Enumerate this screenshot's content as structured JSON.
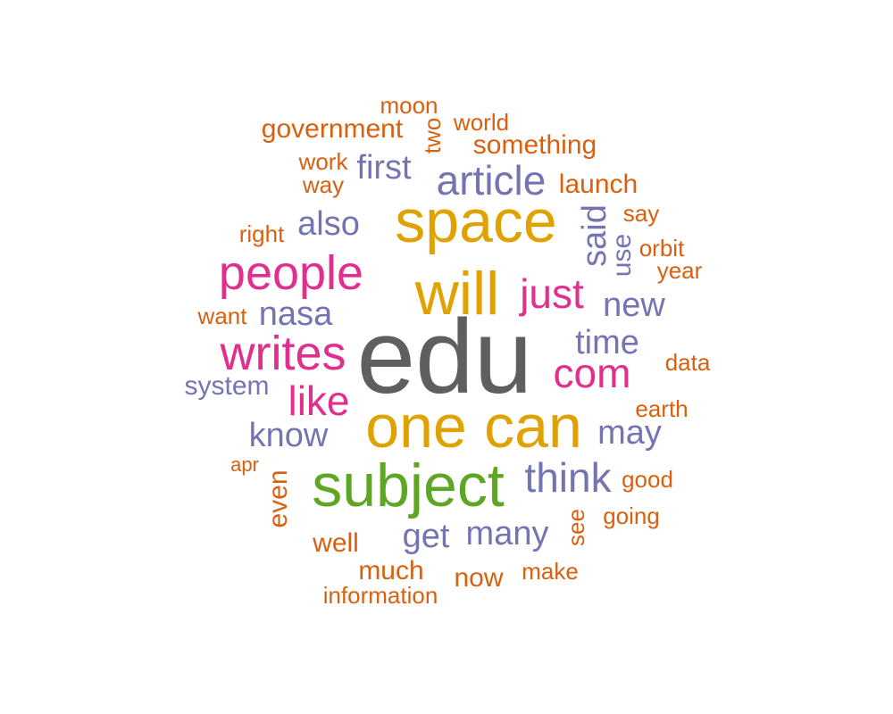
{
  "colors": {
    "background": "#ffffff",
    "gray": "#5f5f5f",
    "gold": "#e0a200",
    "green": "#5ea624",
    "magenta": "#e22e8c",
    "purple": "#7574b2",
    "orange": "#d8600f"
  },
  "words": [
    {
      "text": "edu",
      "tier": "xl",
      "color": "gray",
      "rotated": false
    },
    {
      "text": "space",
      "tier": "l",
      "color": "gold",
      "rotated": false
    },
    {
      "text": "will",
      "tier": "l",
      "color": "gold",
      "rotated": false
    },
    {
      "text": "one",
      "tier": "l",
      "color": "gold",
      "rotated": false
    },
    {
      "text": "can",
      "tier": "l",
      "color": "gold",
      "rotated": false
    },
    {
      "text": "subject",
      "tier": "l",
      "color": "green",
      "rotated": false
    },
    {
      "text": "people",
      "tier": "ml",
      "color": "magenta",
      "rotated": false
    },
    {
      "text": "writes",
      "tier": "ml",
      "color": "magenta",
      "rotated": false
    },
    {
      "text": "just",
      "tier": "m",
      "color": "magenta",
      "rotated": false
    },
    {
      "text": "com",
      "tier": "m",
      "color": "magenta",
      "rotated": false
    },
    {
      "text": "like",
      "tier": "m",
      "color": "magenta",
      "rotated": false
    },
    {
      "text": "article",
      "tier": "m",
      "color": "purple",
      "rotated": false
    },
    {
      "text": "think",
      "tier": "m",
      "color": "purple",
      "rotated": false
    },
    {
      "text": "also",
      "tier": "s",
      "color": "purple",
      "rotated": false
    },
    {
      "text": "nasa",
      "tier": "s",
      "color": "purple",
      "rotated": false
    },
    {
      "text": "time",
      "tier": "s",
      "color": "purple",
      "rotated": false
    },
    {
      "text": "know",
      "tier": "s",
      "color": "purple",
      "rotated": false
    },
    {
      "text": "may",
      "tier": "s",
      "color": "purple",
      "rotated": false
    },
    {
      "text": "new",
      "tier": "s",
      "color": "purple",
      "rotated": false
    },
    {
      "text": "get",
      "tier": "s",
      "color": "purple",
      "rotated": false
    },
    {
      "text": "many",
      "tier": "s",
      "color": "purple",
      "rotated": false
    },
    {
      "text": "first",
      "tier": "s",
      "color": "purple",
      "rotated": false
    },
    {
      "text": "system",
      "tier": "xs",
      "color": "purple",
      "rotated": false
    },
    {
      "text": "said",
      "tier": "s",
      "color": "purple",
      "rotated": true
    },
    {
      "text": "use",
      "tier": "xs",
      "color": "purple",
      "rotated": true
    },
    {
      "text": "something",
      "tier": "xs",
      "color": "orange",
      "rotated": false
    },
    {
      "text": "launch",
      "tier": "xs",
      "color": "orange",
      "rotated": false
    },
    {
      "text": "government",
      "tier": "xs",
      "color": "orange",
      "rotated": false
    },
    {
      "text": "moon",
      "tier": "xxs",
      "color": "orange",
      "rotated": false
    },
    {
      "text": "world",
      "tier": "xxs",
      "color": "orange",
      "rotated": false
    },
    {
      "text": "two",
      "tier": "xxs",
      "color": "orange",
      "rotated": true
    },
    {
      "text": "work",
      "tier": "xxs",
      "color": "orange",
      "rotated": false
    },
    {
      "text": "way",
      "tier": "xxs",
      "color": "orange",
      "rotated": false
    },
    {
      "text": "right",
      "tier": "xxs",
      "color": "orange",
      "rotated": false
    },
    {
      "text": "say",
      "tier": "xxs",
      "color": "orange",
      "rotated": false
    },
    {
      "text": "orbit",
      "tier": "xxs",
      "color": "orange",
      "rotated": false
    },
    {
      "text": "year",
      "tier": "xxs",
      "color": "orange",
      "rotated": false
    },
    {
      "text": "want",
      "tier": "xxs",
      "color": "orange",
      "rotated": false
    },
    {
      "text": "data",
      "tier": "xxs",
      "color": "orange",
      "rotated": false
    },
    {
      "text": "earth",
      "tier": "xxs",
      "color": "orange",
      "rotated": false
    },
    {
      "text": "apr",
      "tier": "xxxs",
      "color": "orange",
      "rotated": false
    },
    {
      "text": "even",
      "tier": "xs",
      "color": "orange",
      "rotated": true
    },
    {
      "text": "good",
      "tier": "xxs",
      "color": "orange",
      "rotated": false
    },
    {
      "text": "going",
      "tier": "xxs",
      "color": "orange",
      "rotated": false
    },
    {
      "text": "see",
      "tier": "xxs",
      "color": "orange",
      "rotated": true
    },
    {
      "text": "well",
      "tier": "xs",
      "color": "orange",
      "rotated": false
    },
    {
      "text": "much",
      "tier": "xs",
      "color": "orange",
      "rotated": false
    },
    {
      "text": "now",
      "tier": "xs",
      "color": "orange",
      "rotated": false
    },
    {
      "text": "make",
      "tier": "xxs",
      "color": "orange",
      "rotated": false
    },
    {
      "text": "information",
      "tier": "xxs",
      "color": "orange",
      "rotated": false
    }
  ]
}
